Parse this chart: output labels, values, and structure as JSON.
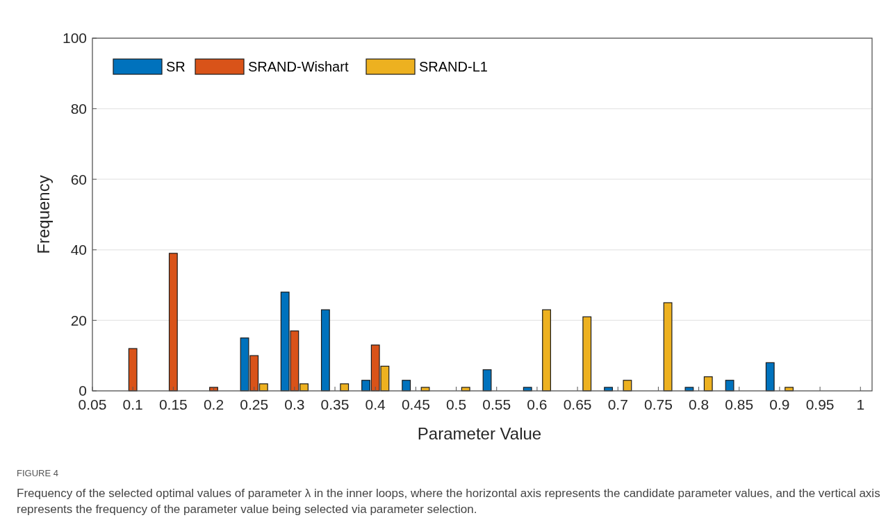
{
  "chart_data": {
    "type": "bar",
    "xlabel": "Parameter Value",
    "ylabel": "Frequency",
    "categories": [
      "0.05",
      "0.1",
      "0.15",
      "0.2",
      "0.25",
      "0.3",
      "0.35",
      "0.4",
      "0.45",
      "0.5",
      "0.55",
      "0.6",
      "0.65",
      "0.7",
      "0.75",
      "0.8",
      "0.85",
      "0.9",
      "0.95",
      "1"
    ],
    "series": [
      {
        "name": "SR",
        "color": "#0072bd",
        "values": [
          0,
          0,
          0,
          0,
          15,
          28,
          23,
          3,
          3,
          0,
          6,
          1,
          0,
          1,
          0,
          1,
          3,
          8,
          0,
          0
        ]
      },
      {
        "name": "SRAND-Wishart",
        "color": "#d95319",
        "values": [
          0,
          12,
          39,
          1,
          10,
          17,
          0,
          13,
          0,
          0,
          0,
          0,
          0,
          0,
          0,
          0,
          0,
          0,
          0,
          0
        ]
      },
      {
        "name": "SRAND-L1",
        "color": "#edb120",
        "values": [
          0,
          0,
          0,
          0,
          2,
          2,
          2,
          7,
          1,
          1,
          0,
          23,
          21,
          3,
          25,
          4,
          0,
          1,
          0,
          0
        ]
      }
    ],
    "ylim": [
      0,
      100
    ],
    "yticks": [
      0,
      20,
      40,
      60,
      80,
      100
    ],
    "grid": "y",
    "legend": "top left",
    "annotations": [
      "FIGURE 4",
      "Frequency of the selected optimal values of parameter λ in the inner loops, where the horizontal axis represents the candidate parameter values, and the vertical axis represents the frequency of the parameter value being selected via parameter selection."
    ]
  }
}
